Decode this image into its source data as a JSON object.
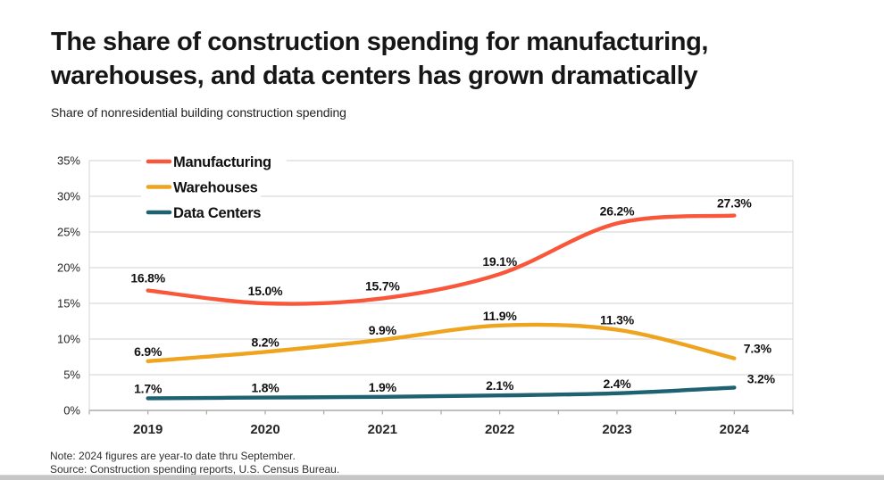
{
  "header": {
    "title_lines": [
      "The share of construction spending for manufacturing,",
      "warehouses, and data centers has grown dramatically"
    ],
    "subtitle": "Share of nonresidential building construction spending"
  },
  "chart_data": {
    "type": "line",
    "categories": [
      "2019",
      "2020",
      "2021",
      "2022",
      "2023",
      "2024"
    ],
    "series": [
      {
        "name": "Manufacturing",
        "color": "#F9573B",
        "values": [
          16.8,
          15.0,
          15.7,
          19.1,
          26.2,
          27.3
        ]
      },
      {
        "name": "Warehouses",
        "color": "#EEA41F",
        "values": [
          6.9,
          8.2,
          9.9,
          11.9,
          11.3,
          7.3
        ]
      },
      {
        "name": "Data Centers",
        "color": "#1E6272",
        "values": [
          1.7,
          1.8,
          1.9,
          2.1,
          2.4,
          3.2
        ]
      }
    ],
    "data_label_format": "percent_one_decimal",
    "y_axis": {
      "min": 0,
      "max": 35,
      "step": 5,
      "tick_labels": [
        "0%",
        "5%",
        "10%",
        "15%",
        "20%",
        "25%",
        "30%",
        "35%"
      ]
    },
    "grid": true,
    "line_style": "smooth",
    "legend_position": "top-left"
  },
  "footer": {
    "note": "Note: 2024 figures are year-to date thru September.",
    "source": "Source: Construction spending reports, U.S. Census Bureau."
  }
}
